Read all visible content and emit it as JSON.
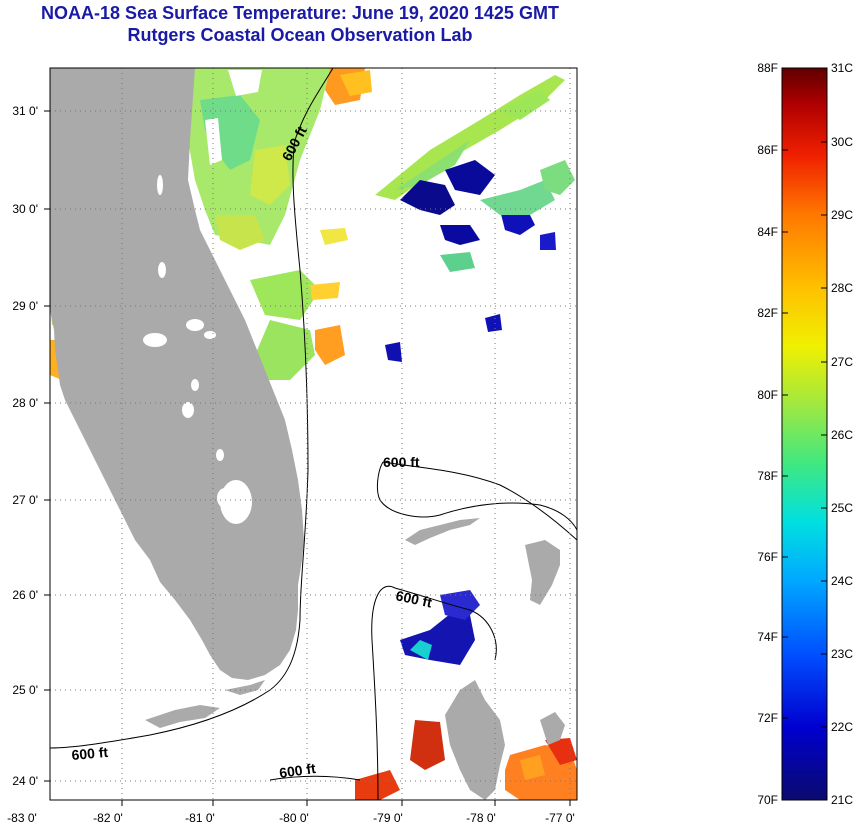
{
  "title": {
    "line1": "NOAA-18 Sea Surface Temperature:  June 19, 2020 1425 GMT",
    "line2": "Rutgers Coastal Ocean Observation Lab"
  },
  "axes": {
    "longitude_labels": [
      "-83 0'",
      "-82 0'",
      "-81 0'",
      "-80 0'",
      "-79 0'",
      "-78 0'",
      "-77 0'"
    ],
    "latitude_labels": [
      "31 0'",
      "30 0'",
      "29 0'",
      "28 0'",
      "27 0'",
      "26 0'",
      "25 0'",
      "24 0'"
    ]
  },
  "contour_label": "600 ft",
  "colorbar": {
    "fahrenheit": [
      "88F",
      "86F",
      "84F",
      "82F",
      "80F",
      "78F",
      "76F",
      "74F",
      "72F",
      "70F"
    ],
    "celsius": [
      "31C",
      "30C",
      "29C",
      "28C",
      "27C",
      "26C",
      "25C",
      "24C",
      "23C",
      "22C",
      "21C"
    ]
  },
  "colors": {
    "land": "#aaaaaa",
    "title": "#1a1aa6",
    "scale": [
      "#0a0a6e",
      "#0000d0",
      "#0050ff",
      "#00a8ff",
      "#00e0e0",
      "#40e880",
      "#a0e840",
      "#f0f000",
      "#ffc000",
      "#ff7800",
      "#f02000",
      "#b00000",
      "#600000"
    ]
  }
}
